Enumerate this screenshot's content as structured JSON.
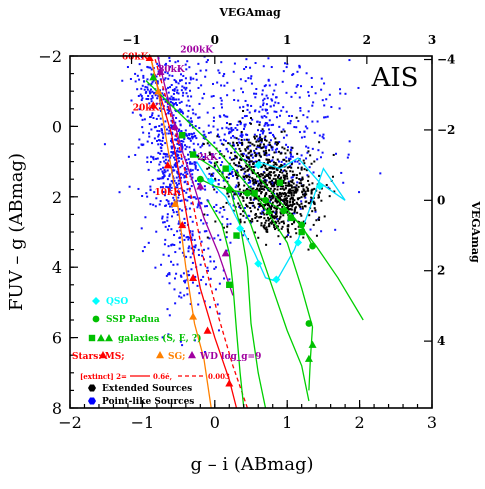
{
  "chart_data": {
    "type": "scatter",
    "panel_label": "AIS",
    "xlabel": "g – i (ABmag)",
    "ylabel": "FUV – g (ABmag)",
    "top_axis_label": "VEGAmag",
    "right_axis_label": "VEGAmag",
    "xlim": [
      -2,
      3
    ],
    "ylim": [
      8,
      -2
    ],
    "x_ticks": [
      "−2",
      "−1",
      "0",
      "1",
      "2",
      "3"
    ],
    "y_ticks": [
      "−2",
      "0",
      "2",
      "4",
      "6",
      "8"
    ],
    "top_ticks": [
      "−1",
      "0",
      "1",
      "2",
      "3"
    ],
    "right_ticks": [
      "−4",
      "−2",
      "0",
      "2",
      "4"
    ],
    "top_tick_positions": [
      -1.15,
      0.0,
      1.0,
      2.1,
      3.0
    ],
    "right_tick_positions": [
      -1.9,
      0.1,
      2.1,
      4.1,
      6.1
    ],
    "temperature_labels": [
      {
        "text": "60kK",
        "x": -1.1,
        "y": -1.9,
        "color": "#ff0000"
      },
      {
        "text": "200kK",
        "x": -0.25,
        "y": -2.1,
        "color": "#a000a0"
      },
      {
        "text": "80kK",
        "x": -0.6,
        "y": -1.55,
        "color": "#a000a0"
      },
      {
        "text": "20kK",
        "x": -0.95,
        "y": -0.45,
        "color": "#ff0000"
      },
      {
        "text": "10kK",
        "x": -0.65,
        "y": 1.95,
        "color": "#ff0000"
      },
      {
        "text": "2kK",
        "x": -0.1,
        "y": 0.95,
        "color": "#a000a0"
      }
    ],
    "legend": [
      {
        "text": "QSO",
        "color": "#00ffff",
        "marker": "diamond"
      },
      {
        "text": "SSP Padua",
        "color": "#00c000",
        "marker": "circle"
      },
      {
        "text": "galaxies (S, E, ?)",
        "color": "#00c000",
        "marker": "square-tri"
      },
      {
        "text": "Stars: MS;",
        "color": "#ff0000",
        "marker": "triangle"
      },
      {
        "text": "SG;",
        "color": "#ff8000",
        "marker": "triangle"
      },
      {
        "text": "WD log_g=9",
        "color": "#a000a0",
        "marker": "triangle"
      },
      {
        "text": "[extinct] 2=",
        "color": "#ff0000",
        "marker": "none"
      },
      {
        "text": "0.6é,",
        "color": "#ff0000",
        "marker": "solid-line"
      },
      {
        "text": "0.003",
        "color": "#ff0000",
        "marker": "dashed-line"
      },
      {
        "text": "Extended Sources",
        "color": "#000000",
        "marker": "hexagon"
      },
      {
        "text": "Point-like Sources",
        "color": "#0000ff",
        "marker": "hexagon"
      }
    ],
    "series": [
      {
        "name": "Point-like Sources",
        "color": "#1010ff",
        "shape": "dot",
        "clusters": [
          {
            "cx": -0.55,
            "cy": 0.6,
            "sx": 0.22,
            "sy": 1.1,
            "n": 520
          },
          {
            "cx": 0.55,
            "cy": 0.3,
            "sx": 0.55,
            "sy": 1.3,
            "n": 600
          },
          {
            "cx": -0.8,
            "cy": -1.2,
            "sx": 0.2,
            "sy": 0.4,
            "n": 120
          },
          {
            "cx": -0.35,
            "cy": 3.5,
            "sx": 0.25,
            "sy": 1.0,
            "n": 160
          }
        ]
      },
      {
        "name": "Extended Sources",
        "color": "#000000",
        "shape": "dot",
        "clusters": [
          {
            "cx": 0.85,
            "cy": 2.0,
            "sx": 0.28,
            "sy": 0.55,
            "n": 700
          },
          {
            "cx": 0.45,
            "cy": 0.9,
            "sx": 0.3,
            "sy": 0.45,
            "n": 200
          }
        ]
      }
    ],
    "lines": [
      {
        "name": "MS",
        "color": "#ff0000",
        "dash": "",
        "points": [
          [
            -0.9,
            -2.1
          ],
          [
            -0.8,
            -1.2
          ],
          [
            -0.6,
            0.2
          ],
          [
            -0.45,
            1.8
          ],
          [
            -0.35,
            3.0
          ],
          [
            -0.2,
            4.6
          ],
          [
            0.0,
            6.0
          ],
          [
            0.2,
            7.2
          ],
          [
            0.3,
            8.0
          ]
        ]
      },
      {
        "name": "MS extinct",
        "color": "#ff0000",
        "dash": "4,3",
        "points": [
          [
            -0.85,
            -2.1
          ],
          [
            -0.7,
            -1.0
          ],
          [
            -0.5,
            0.5
          ],
          [
            -0.3,
            2.2
          ],
          [
            -0.15,
            3.8
          ],
          [
            0.05,
            5.4
          ],
          [
            0.25,
            6.8
          ],
          [
            0.45,
            8.0
          ]
        ]
      },
      {
        "name": "SG",
        "color": "#ff8000",
        "dash": "",
        "points": [
          [
            -0.9,
            -2.1
          ],
          [
            -0.78,
            -1.0
          ],
          [
            -0.65,
            0.6
          ],
          [
            -0.5,
            2.4
          ],
          [
            -0.4,
            4.0
          ],
          [
            -0.28,
            5.6
          ],
          [
            -0.15,
            6.6
          ],
          [
            -0.05,
            8.0
          ]
        ]
      },
      {
        "name": "WD",
        "color": "#a000a0",
        "dash": "",
        "points": [
          [
            -0.8,
            -2.1
          ],
          [
            -0.72,
            -1.4
          ],
          [
            -0.6,
            -0.4
          ],
          [
            -0.45,
            0.7
          ],
          [
            -0.3,
            1.6
          ],
          [
            -0.15,
            2.6
          ],
          [
            0.05,
            3.6
          ],
          [
            0.25,
            4.8
          ]
        ]
      },
      {
        "name": "QSO track",
        "color": "#00e0ff",
        "dash": "",
        "points": [
          [
            -0.25,
            1.0
          ],
          [
            -0.1,
            1.5
          ],
          [
            0.15,
            2.0
          ],
          [
            0.35,
            2.8
          ],
          [
            0.55,
            3.6
          ],
          [
            0.7,
            4.3
          ],
          [
            0.85,
            4.4
          ],
          [
            1.1,
            3.5
          ],
          [
            1.3,
            2.4
          ],
          [
            1.5,
            1.2
          ],
          [
            1.8,
            2.1
          ],
          [
            1.45,
            1.6
          ],
          [
            1.15,
            0.9
          ],
          [
            0.9,
            1.2
          ],
          [
            0.6,
            1.0
          ]
        ]
      },
      {
        "name": "SSP Padua",
        "color": "#00c000",
        "dash": "",
        "points": [
          [
            -0.2,
            1.5
          ],
          [
            0.0,
            1.7
          ],
          [
            0.2,
            1.8
          ],
          [
            0.45,
            1.9
          ],
          [
            0.7,
            2.1
          ],
          [
            0.95,
            2.4
          ],
          [
            1.2,
            2.8
          ],
          [
            1.35,
            3.4
          ]
        ]
      },
      {
        "name": "galaxy S1",
        "color": "#00d000",
        "dash": "",
        "points": [
          [
            -0.95,
            -1.3
          ],
          [
            -0.4,
            -0.2
          ],
          [
            0.0,
            0.6
          ],
          [
            0.3,
            1.3
          ],
          [
            0.55,
            1.9
          ],
          [
            0.75,
            2.5
          ],
          [
            1.0,
            3.3
          ],
          [
            1.2,
            4.6
          ],
          [
            1.35,
            5.7
          ],
          [
            1.32,
            6.6
          ],
          [
            1.3,
            7.5
          ]
        ]
      },
      {
        "name": "galaxy S2",
        "color": "#00d000",
        "dash": "",
        "points": [
          [
            -0.3,
            0.8
          ],
          [
            0.0,
            1.2
          ],
          [
            0.3,
            1.9
          ],
          [
            0.5,
            2.8
          ],
          [
            0.65,
            3.7
          ],
          [
            0.8,
            4.6
          ],
          [
            1.0,
            5.8
          ],
          [
            1.2,
            6.8
          ],
          [
            1.3,
            7.8
          ]
        ]
      },
      {
        "name": "galaxy S3",
        "color": "#00d000",
        "dash": "",
        "points": [
          [
            0.0,
            1.0
          ],
          [
            0.2,
            1.7
          ],
          [
            0.35,
            2.8
          ],
          [
            0.45,
            4.0
          ],
          [
            0.5,
            5.6
          ],
          [
            0.6,
            7.0
          ],
          [
            0.7,
            8.0
          ]
        ]
      },
      {
        "name": "galaxy E",
        "color": "#00d000",
        "dash": "",
        "points": [
          [
            0.2,
            0.5
          ],
          [
            0.5,
            1.2
          ],
          [
            0.8,
            1.9
          ],
          [
            1.1,
            2.6
          ],
          [
            1.4,
            3.4
          ],
          [
            1.7,
            4.3
          ],
          [
            2.05,
            5.5
          ]
        ]
      },
      {
        "name": "galaxy S4",
        "color": "#00d000",
        "dash": "",
        "points": [
          [
            -0.1,
            2.1
          ],
          [
            0.1,
            2.8
          ],
          [
            0.2,
            3.6
          ],
          [
            0.25,
            4.5
          ],
          [
            0.3,
            5.8
          ],
          [
            0.35,
            7.0
          ],
          [
            0.4,
            8.0
          ]
        ]
      }
    ],
    "markers": [
      {
        "series": "MS",
        "shape": "tri",
        "color": "#ff0000",
        "points": [
          [
            -0.9,
            -1.95
          ],
          [
            -0.85,
            -0.6
          ],
          [
            -0.65,
            1.1
          ],
          [
            -0.45,
            2.8
          ],
          [
            -0.3,
            4.3
          ],
          [
            -0.1,
            5.8
          ],
          [
            0.2,
            7.3
          ]
        ]
      },
      {
        "series": "SG",
        "shape": "tri",
        "color": "#ff8000",
        "points": [
          [
            -0.78,
            -1.0
          ],
          [
            -0.55,
            2.2
          ],
          [
            -0.3,
            5.4
          ]
        ]
      },
      {
        "series": "WD",
        "shape": "tri",
        "color": "#a000a0",
        "points": [
          [
            -0.75,
            -1.55
          ],
          [
            -0.55,
            0.0
          ],
          [
            -0.2,
            1.7
          ],
          [
            0.15,
            3.6
          ]
        ]
      },
      {
        "series": "QSO",
        "shape": "diamond",
        "color": "#00ffff",
        "points": [
          [
            -0.05,
            1.55
          ],
          [
            0.35,
            2.9
          ],
          [
            0.6,
            3.9
          ],
          [
            0.85,
            4.35
          ],
          [
            1.15,
            3.3
          ],
          [
            1.45,
            1.7
          ],
          [
            0.6,
            1.1
          ],
          [
            0.2,
            1.2
          ]
        ]
      },
      {
        "series": "SSP",
        "shape": "circle",
        "color": "#00c000",
        "points": [
          [
            -0.2,
            1.5
          ],
          [
            0.2,
            1.8
          ],
          [
            0.45,
            1.9
          ],
          [
            0.7,
            2.1
          ],
          [
            0.95,
            2.4
          ],
          [
            1.2,
            2.8
          ],
          [
            1.35,
            3.4
          ],
          [
            1.3,
            5.6
          ]
        ]
      },
      {
        "series": "galaxies",
        "shape": "square",
        "color": "#00c000",
        "points": [
          [
            -0.45,
            0.25
          ],
          [
            -0.3,
            0.8
          ],
          [
            0.15,
            1.2
          ],
          [
            0.55,
            1.9
          ],
          [
            0.9,
            1.6
          ],
          [
            1.05,
            2.6
          ],
          [
            1.2,
            3.0
          ],
          [
            0.3,
            3.1
          ],
          [
            0.2,
            4.5
          ]
        ]
      },
      {
        "series": "galaxies",
        "shape": "tri",
        "color": "#00c000",
        "points": [
          [
            -0.85,
            -1.4
          ],
          [
            0.75,
            2.4
          ],
          [
            1.35,
            6.2
          ],
          [
            1.3,
            6.6
          ]
        ]
      }
    ]
  }
}
